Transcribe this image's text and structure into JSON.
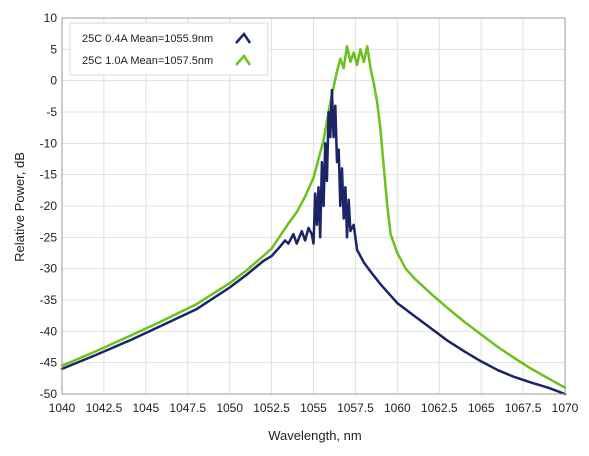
{
  "chart_data": {
    "type": "line",
    "xlabel": "Wavelength, nm",
    "ylabel": "Relative Power, dB",
    "xlim": [
      1040,
      1070
    ],
    "ylim": [
      -50,
      10
    ],
    "x_ticks": [
      "1040",
      "1042.5",
      "1045",
      "1047.5",
      "1050",
      "1052.5",
      "1055",
      "1057.5",
      "1060",
      "1062.5",
      "1065",
      "1067.5",
      "1070"
    ],
    "y_ticks": [
      "10",
      "5",
      "0",
      "-5",
      "-10",
      "-15",
      "-20",
      "-25",
      "-30",
      "-35",
      "-40",
      "-45",
      "-50"
    ],
    "grid": true,
    "legend_position": "top-left",
    "series": [
      {
        "name": "25C 0.4A Mean=1055.9nm",
        "color": "#1a2466",
        "x": [
          1040,
          1042,
          1044,
          1046,
          1048,
          1050,
          1051,
          1052,
          1052.5,
          1053,
          1053.3,
          1053.5,
          1053.8,
          1054,
          1054.3,
          1054.5,
          1054.7,
          1054.9,
          1055,
          1055.1,
          1055.2,
          1055.3,
          1055.4,
          1055.5,
          1055.6,
          1055.7,
          1055.8,
          1055.9,
          1056,
          1056.1,
          1056.2,
          1056.3,
          1056.4,
          1056.5,
          1056.6,
          1056.7,
          1056.8,
          1056.9,
          1057,
          1057.1,
          1057.2,
          1057.4,
          1057.6,
          1058,
          1058.5,
          1059,
          1059.5,
          1060,
          1061,
          1062,
          1063,
          1064,
          1065,
          1066,
          1067,
          1068,
          1069,
          1070
        ],
        "y": [
          -46,
          -43.8,
          -41.5,
          -39,
          -36.5,
          -33,
          -31,
          -28.8,
          -28,
          -26.5,
          -25.5,
          -26,
          -24.5,
          -26,
          -24,
          -25.5,
          -23.5,
          -24.5,
          -26,
          -18,
          -23,
          -17,
          -25,
          -13,
          -20,
          -10,
          -16,
          -5,
          -9,
          -1.5,
          -9,
          -4,
          -13,
          -11,
          -20,
          -14,
          -22,
          -17,
          -25,
          -19,
          -24,
          -23,
          -27,
          -29,
          -30.8,
          -32.5,
          -34,
          -35.5,
          -37.5,
          -39.5,
          -41.5,
          -43.2,
          -44.8,
          -46.2,
          -47.3,
          -48.2,
          -49,
          -50
        ]
      },
      {
        "name": "25C 1.0A Mean=1057.5nm",
        "color": "#6ac21c",
        "x": [
          1040,
          1042,
          1044,
          1046,
          1048,
          1050,
          1051,
          1052,
          1052.5,
          1053,
          1053.5,
          1054,
          1054.5,
          1055,
          1055.3,
          1055.6,
          1055.8,
          1056,
          1056.2,
          1056.4,
          1056.6,
          1056.8,
          1057,
          1057.2,
          1057.4,
          1057.6,
          1057.8,
          1058,
          1058.2,
          1058.4,
          1058.6,
          1058.8,
          1059,
          1059.2,
          1059.4,
          1059.6,
          1060,
          1060.5,
          1061,
          1062,
          1063,
          1064,
          1065,
          1066,
          1067,
          1068,
          1069,
          1070
        ],
        "y": [
          -45.5,
          -43.2,
          -40.8,
          -38.3,
          -35.7,
          -32.3,
          -30.3,
          -28,
          -26.8,
          -24.8,
          -22.8,
          -21,
          -18.5,
          -15.5,
          -12.5,
          -9.5,
          -6.5,
          -3.5,
          -1,
          1.5,
          3.5,
          2,
          5.5,
          3,
          4.5,
          2.5,
          5,
          3,
          5.5,
          2,
          -0.5,
          -3.5,
          -8,
          -14,
          -20,
          -24.5,
          -27.5,
          -30,
          -31.5,
          -34,
          -36.3,
          -38.5,
          -40.5,
          -42.5,
          -44.3,
          -46,
          -47.5,
          -49
        ]
      }
    ]
  }
}
